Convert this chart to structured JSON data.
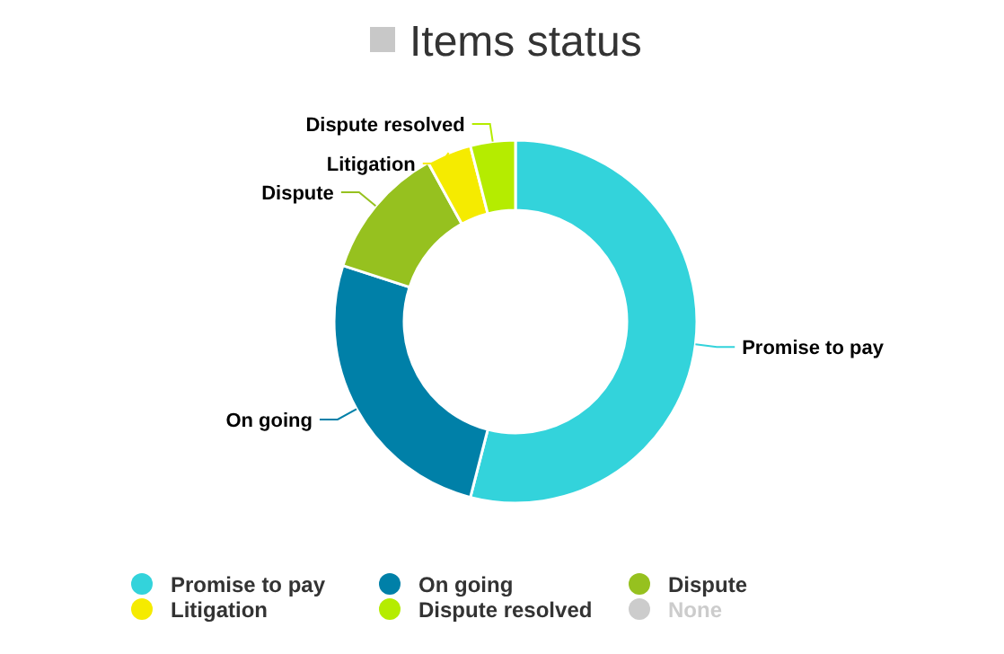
{
  "chart_data": {
    "type": "donut",
    "title": "Items status",
    "categories": [
      "Promise to pay",
      "On going",
      "Dispute",
      "Litigation",
      "Dispute resolved",
      "None"
    ],
    "values": [
      54,
      26,
      12,
      4,
      4,
      0
    ],
    "colors": [
      "#33d3db",
      "#0080a8",
      "#96c11f",
      "#f5eb00",
      "#b5ec00",
      "#cccccc"
    ],
    "legend": "bottom"
  }
}
